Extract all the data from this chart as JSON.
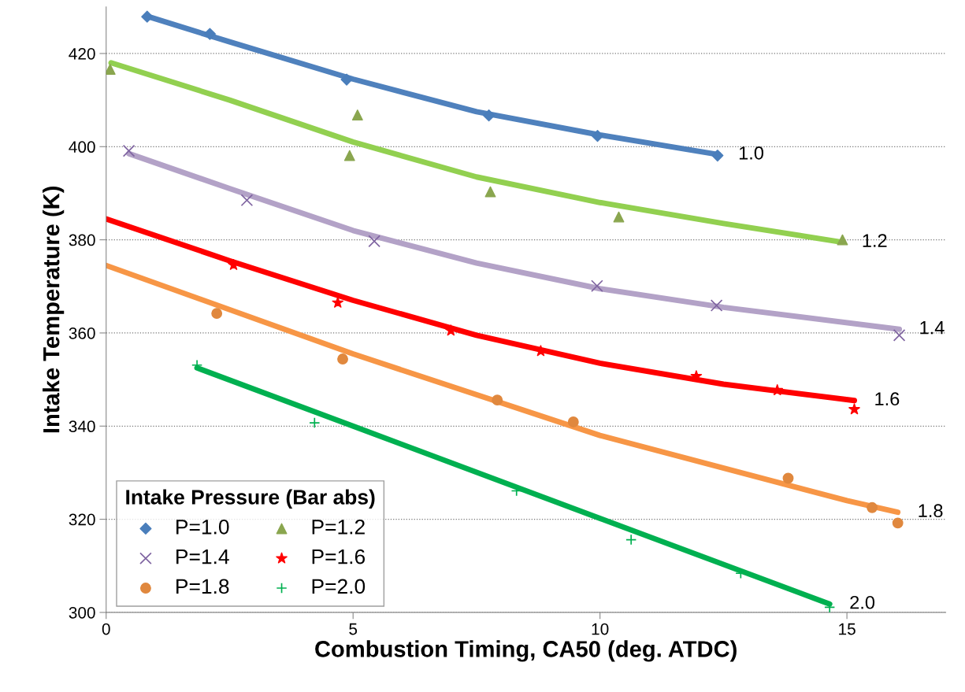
{
  "chart_data": {
    "type": "scatter",
    "xlabel": "Combustion Timing, CA50 (deg. ATDC)",
    "ylabel": "Intake Temperature (K)",
    "legend_title": "Intake Pressure (Bar abs)",
    "legend": "bottom left",
    "grid": "y",
    "xlim": [
      0,
      17
    ],
    "xticks": [
      0,
      5,
      10,
      15
    ],
    "ylim": [
      300,
      430
    ],
    "yticks": [
      300,
      320,
      340,
      360,
      380,
      400,
      420
    ],
    "series": [
      {
        "type": "line",
        "color": "#4f81bd",
        "marker": "none",
        "line_style": "solid",
        "x": [
          0.83,
          2.5,
          5,
          7.5,
          10,
          12.4
        ],
        "values": [
          428,
          422.5,
          414.5,
          407.5,
          402.5,
          398.3
        ]
      },
      {
        "type": "line",
        "color": "#92d050",
        "marker": "none",
        "line_style": "solid",
        "x": [
          0.1,
          2.5,
          5,
          7.5,
          10,
          12.5,
          14.9
        ],
        "values": [
          418,
          410,
          401,
          393.5,
          388,
          383.5,
          379.5
        ]
      },
      {
        "type": "line",
        "color": "#b3a2c7",
        "marker": "none",
        "line_style": "solid",
        "x": [
          0.46,
          2.5,
          5,
          7.5,
          10,
          12.5,
          16.06
        ],
        "values": [
          398.5,
          391,
          382,
          375,
          369.5,
          365.5,
          360.8
        ]
      },
      {
        "type": "line",
        "color": "#ff0000",
        "marker": "none",
        "line_style": "solid",
        "x": [
          0,
          2.5,
          5,
          7.5,
          10,
          12.5,
          15.15
        ],
        "values": [
          384.5,
          375.5,
          367,
          359.5,
          353.5,
          349,
          345.5
        ]
      },
      {
        "type": "line",
        "color": "#f79646",
        "marker": "none",
        "line_style": "solid",
        "x": [
          0,
          5,
          10,
          15,
          16.03
        ],
        "values": [
          374.5,
          355.5,
          338,
          324,
          321.5
        ]
      },
      {
        "type": "line",
        "color": "#00b050",
        "marker": "none",
        "line_style": "solid",
        "x": [
          1.84,
          5,
          10,
          14.65
        ],
        "values": [
          352.5,
          340,
          320.2,
          301.8
        ]
      },
      {
        "name": "P=1.0",
        "color": "#4a7ebb",
        "marker": "diamond",
        "x": [
          0.83,
          2.1,
          4.87,
          7.75,
          9.95,
          12.38
        ],
        "values": [
          427.9,
          424.2,
          414.4,
          406.7,
          402.3,
          398.1
        ]
      },
      {
        "name": "P=1.2",
        "color": "#8aa64f",
        "marker": "triangle",
        "x": [
          0.08,
          5.09,
          4.93,
          7.78,
          10.38,
          14.91
        ],
        "values": [
          416.6,
          406.8,
          398.1,
          390.3,
          384.9,
          380.0
        ]
      },
      {
        "name": "P=1.4",
        "color": "#7f64a1",
        "marker": "cross",
        "x": [
          0.46,
          2.85,
          5.43,
          9.94,
          12.36,
          16.06
        ],
        "values": [
          399.1,
          388.5,
          379.7,
          370.1,
          365.9,
          359.5
        ]
      },
      {
        "name": "P=1.6",
        "color": "#ff0000",
        "marker": "star",
        "x": [
          2.58,
          4.69,
          6.98,
          8.8,
          11.95,
          13.59,
          15.15
        ],
        "values": [
          374.6,
          366.5,
          360.5,
          356.1,
          350.7,
          347.7,
          343.6
        ]
      },
      {
        "name": "P=1.8",
        "color": "#e0883e",
        "marker": "circle",
        "x": [
          2.24,
          4.79,
          7.92,
          9.46,
          13.81,
          15.51,
          16.03
        ],
        "values": [
          364.2,
          354.4,
          345.6,
          340.9,
          328.8,
          322.5,
          319.2
        ]
      },
      {
        "name": "P=2.0",
        "color": "#00b050",
        "marker": "plus",
        "x": [
          1.84,
          4.22,
          8.31,
          10.63,
          12.85,
          14.65
        ],
        "values": [
          353.1,
          340.7,
          326.1,
          315.6,
          308.4,
          301.1
        ]
      }
    ],
    "annotations": [
      {
        "text": "1.0",
        "x": 12.4,
        "y": 398.3
      },
      {
        "text": "1.2",
        "x": 14.9,
        "y": 379.5
      },
      {
        "text": "1.4",
        "x": 16.06,
        "y": 360.8
      },
      {
        "text": "1.6",
        "x": 15.15,
        "y": 345.5
      },
      {
        "text": "1.8",
        "x": 16.03,
        "y": 321.5
      },
      {
        "text": "2.0",
        "x": 14.65,
        "y": 301.8
      }
    ]
  }
}
